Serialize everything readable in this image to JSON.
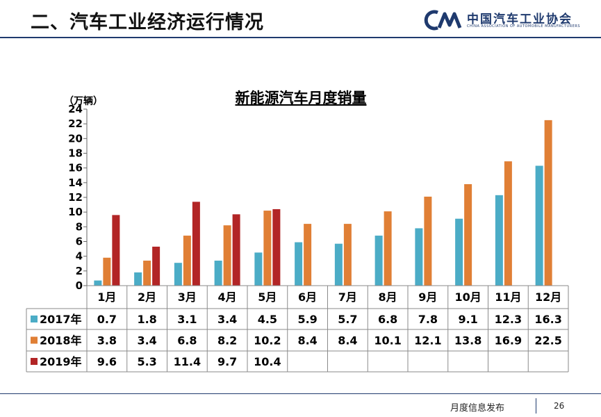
{
  "header": {
    "title": "二、汽车工业经济运行情况"
  },
  "logo": {
    "name_cn": "中国汽车工业协会",
    "name_en": "CHINA ASSOCIATION OF AUTOMOBILE MANUFACTURERS"
  },
  "footer": {
    "text": "月度信息发布",
    "page_number": "26"
  },
  "colors": {
    "series_2017": "#4bacc6",
    "series_2018": "#e07f35",
    "series_2019": "#b22526",
    "header_rule": "#1f3a6e"
  },
  "chart_data": {
    "type": "bar",
    "title": "新能源汽车月度销量",
    "unit_label": "（万辆）",
    "categories": [
      "1月",
      "2月",
      "3月",
      "4月",
      "5月",
      "6月",
      "7月",
      "8月",
      "9月",
      "10月",
      "11月",
      "12月"
    ],
    "series": [
      {
        "name": "2017年",
        "values": [
          0.7,
          1.8,
          3.1,
          3.4,
          4.5,
          5.9,
          5.7,
          6.8,
          7.8,
          9.1,
          12.3,
          16.3
        ]
      },
      {
        "name": "2018年",
        "values": [
          3.8,
          3.4,
          6.8,
          8.2,
          10.2,
          8.4,
          8.4,
          10.1,
          12.1,
          13.8,
          16.9,
          22.5
        ]
      },
      {
        "name": "2019年",
        "values": [
          9.6,
          5.3,
          11.4,
          9.7,
          10.4,
          null,
          null,
          null,
          null,
          null,
          null,
          null
        ]
      }
    ],
    "yticks": [
      0,
      2,
      4,
      6,
      8,
      10,
      12,
      14,
      16,
      18,
      20,
      22,
      24
    ],
    "ylim": [
      0,
      24
    ],
    "grid": false,
    "legend": "data table below chart"
  }
}
